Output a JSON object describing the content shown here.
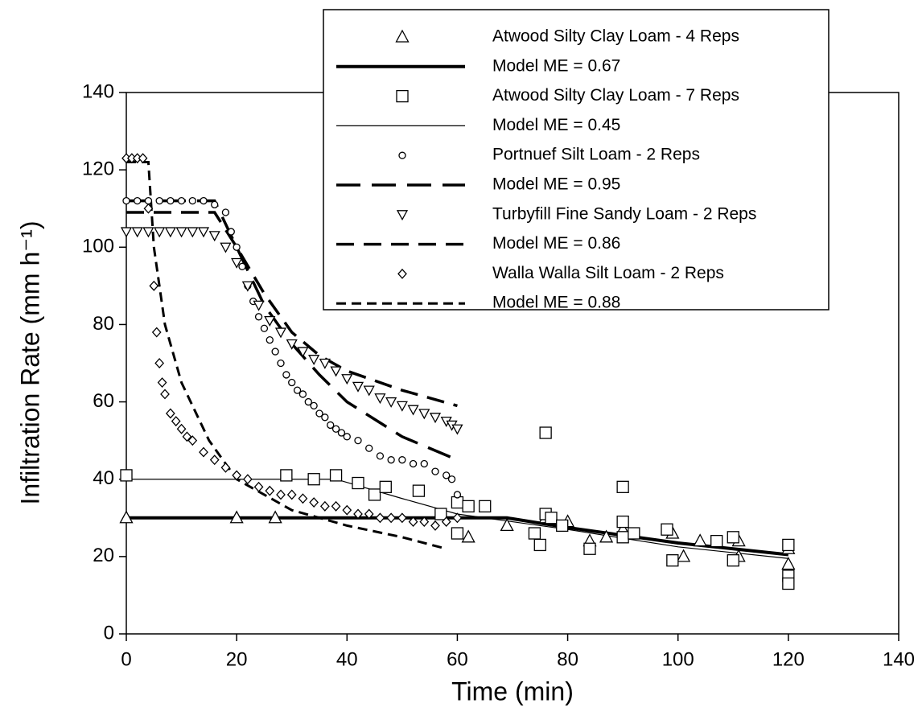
{
  "chart_data": {
    "type": "scatter",
    "xlabel": "Time (min)",
    "ylabel": "Infiltration Rate (mm h⁻¹)",
    "xlim": [
      0,
      140
    ],
    "ylim": [
      0,
      140
    ],
    "xticks": [
      0,
      20,
      40,
      60,
      80,
      100,
      120,
      140
    ],
    "yticks": [
      0,
      20,
      40,
      60,
      80,
      100,
      120,
      140
    ],
    "series": [
      {
        "name": "Atwood Silty Clay Loam - 4 Reps",
        "mode": "markers",
        "marker": "triangle",
        "color": "#000000",
        "x": [
          0,
          20,
          27,
          62,
          69,
          76,
          80,
          84,
          87,
          90,
          99,
          101,
          104,
          111,
          111,
          120,
          120
        ],
        "values": [
          30,
          30,
          30,
          25,
          28,
          30,
          29,
          24,
          25,
          27,
          26,
          20,
          24,
          24,
          20,
          18,
          22
        ]
      },
      {
        "name": "Model ME = 0.67",
        "mode": "lines",
        "line": "thick-solid",
        "color": "#000000",
        "x": [
          0,
          69,
          80,
          100,
          120
        ],
        "values": [
          30,
          30,
          27.5,
          23.5,
          20.5
        ]
      },
      {
        "name": "Atwood Silty Clay Loam - 7 Reps",
        "mode": "markers",
        "marker": "square",
        "color": "#000000",
        "x": [
          0,
          29,
          34,
          38,
          42,
          45,
          47,
          53,
          57,
          60,
          60,
          62,
          65,
          74,
          75,
          76,
          76,
          77,
          79,
          84,
          90,
          90,
          90,
          92,
          98,
          99,
          107,
          110,
          110,
          120,
          120,
          120
        ],
        "values": [
          41,
          41,
          40,
          41,
          39,
          36,
          38,
          37,
          31,
          34,
          26,
          33,
          33,
          26,
          23,
          31,
          52,
          30,
          28,
          22,
          38,
          29,
          25,
          26,
          27,
          19,
          24,
          25,
          19,
          23,
          15,
          13
        ]
      },
      {
        "name": "Model ME = 0.45",
        "mode": "lines",
        "line": "thin-solid",
        "color": "#000000",
        "x": [
          0,
          38,
          50,
          60,
          80,
          100,
          120
        ],
        "values": [
          40,
          40,
          35,
          31,
          27,
          22.5,
          19.5
        ]
      },
      {
        "name": "Portnuef Silt Loam - 2 Reps",
        "mode": "markers",
        "marker": "circle",
        "color": "#000000",
        "x": [
          0,
          2,
          4,
          6,
          8,
          10,
          12,
          14,
          16,
          18,
          19,
          20,
          21,
          22,
          23,
          24,
          25,
          26,
          27,
          28,
          29,
          30,
          31,
          32,
          33,
          34,
          35,
          36,
          37,
          38,
          39,
          40,
          42,
          44,
          46,
          48,
          50,
          52,
          54,
          56,
          58,
          59,
          60
        ],
        "values": [
          112,
          112,
          112,
          112,
          112,
          112,
          112,
          112,
          111,
          109,
          104,
          100,
          95,
          90,
          86,
          82,
          79,
          76,
          73,
          70,
          67,
          65,
          63,
          62,
          60,
          59,
          57,
          56,
          54,
          53,
          52,
          51,
          50,
          48,
          46,
          45,
          45,
          44,
          44,
          42,
          41,
          40,
          36
        ]
      },
      {
        "name": "Model ME = 0.95",
        "mode": "lines",
        "line": "long-dash",
        "color": "#000000",
        "x": [
          0,
          16,
          20,
          25,
          30,
          35,
          40,
          50,
          60
        ],
        "values": [
          112,
          112,
          100,
          85,
          75,
          67,
          60,
          51,
          45
        ]
      },
      {
        "name": "Turbyfill Fine Sandy Loam - 2 Reps",
        "mode": "markers",
        "marker": "triangle-down",
        "color": "#000000",
        "x": [
          0,
          2,
          4,
          6,
          8,
          10,
          12,
          14,
          16,
          18,
          20,
          22,
          24,
          26,
          28,
          30,
          32,
          34,
          36,
          38,
          40,
          42,
          44,
          46,
          48,
          50,
          52,
          54,
          56,
          58,
          59,
          60
        ],
        "values": [
          104,
          104,
          104,
          104,
          104,
          104,
          104,
          104,
          103,
          100,
          96,
          90,
          85,
          81,
          78,
          75,
          73,
          71,
          70,
          68,
          66,
          64,
          63,
          61,
          60,
          59,
          58,
          57,
          56,
          55,
          54,
          53
        ]
      },
      {
        "name": "Model ME = 0.86",
        "mode": "lines",
        "line": "medium-long-dash",
        "color": "#000000",
        "x": [
          0,
          16,
          20,
          25,
          30,
          35,
          40,
          50,
          60
        ],
        "values": [
          109,
          109,
          100,
          88,
          78,
          72,
          68,
          63,
          59
        ]
      },
      {
        "name": "Walla Walla Silt Loam - 2 Reps",
        "mode": "markers",
        "marker": "diamond",
        "color": "#000000",
        "x": [
          0,
          1,
          2,
          3,
          4,
          5,
          5.5,
          6,
          6.5,
          7,
          8,
          9,
          10,
          11,
          12,
          14,
          16,
          18,
          20,
          22,
          24,
          26,
          28,
          30,
          32,
          34,
          36,
          38,
          40,
          42,
          44,
          46,
          48,
          50,
          52,
          54,
          56,
          58,
          60
        ],
        "values": [
          123,
          123,
          123,
          123,
          110,
          90,
          78,
          70,
          65,
          62,
          57,
          55,
          53,
          51,
          50,
          47,
          45,
          43,
          41,
          40,
          38,
          37,
          36,
          36,
          35,
          34,
          33,
          33,
          32,
          31,
          31,
          30,
          30,
          30,
          29,
          29,
          28,
          29,
          30
        ]
      },
      {
        "name": "Model ME = 0.88",
        "mode": "lines",
        "line": "dash",
        "color": "#000000",
        "x": [
          0,
          4,
          5,
          7,
          10,
          15,
          20,
          30,
          40,
          50,
          58
        ],
        "values": [
          122,
          122,
          100,
          80,
          65,
          50,
          40,
          32,
          28,
          25,
          22
        ]
      }
    ]
  }
}
